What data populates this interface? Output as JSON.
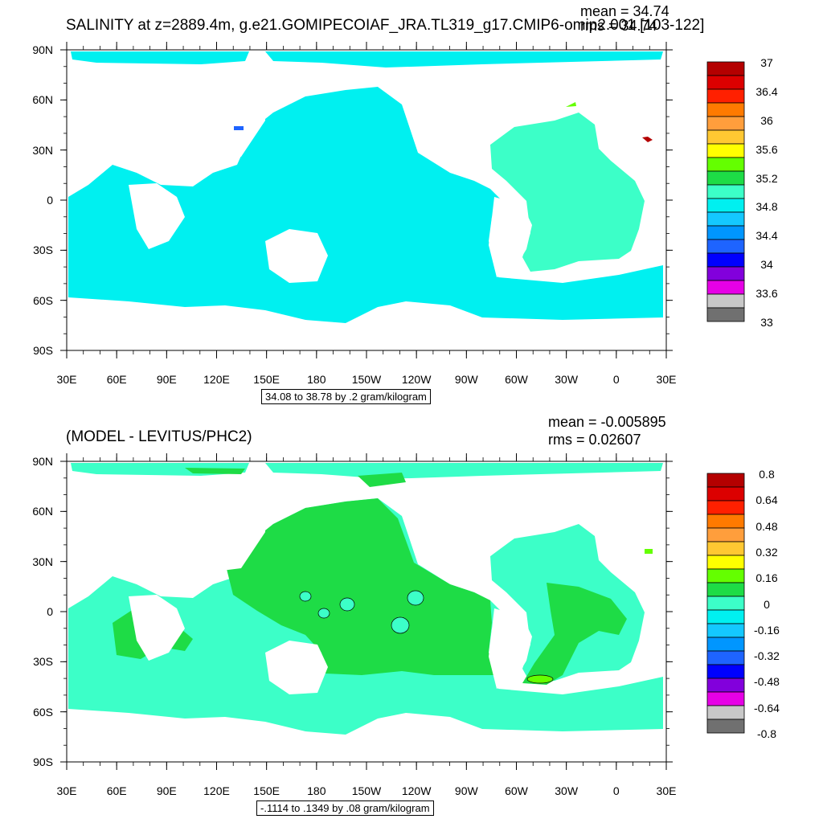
{
  "top": {
    "title": "SALINITY at z=2889.4m, g.e21.GOMIPECOIAF_JRA.TL319_g17.CMIP6-omip2.001 [103-122]",
    "mean": "mean = 34.74",
    "rms": "rms = 34.74",
    "footer": "34.08 to 38.78 by .2 gram/kilogram",
    "colorbar_labels": [
      "37",
      "36.4",
      "36",
      "35.6",
      "35.2",
      "34.8",
      "34.4",
      "34",
      "33.6",
      "33"
    ],
    "colorbar_colors": [
      "#b40000",
      "#dc0000",
      "#ff2000",
      "#ff7a00",
      "#ff9e3c",
      "#ffc832",
      "#ffff00",
      "#64ff00",
      "#1edc46",
      "#3cffc8",
      "#00f0f0",
      "#14c8ff",
      "#0096ff",
      "#1e64ff",
      "#0000ff",
      "#8200dc",
      "#e600e6",
      "#c8c8c8",
      "#707070"
    ]
  },
  "bottom": {
    "title": "(MODEL - LEVITUS/PHC2)",
    "mean": "mean = -0.005895",
    "rms": "rms = 0.02607",
    "footer": "-.1114 to .1349 by .08 gram/kilogram",
    "colorbar_labels": [
      "0.8",
      "0.64",
      "0.48",
      "0.32",
      "0.16",
      "0",
      "-0.16",
      "-0.32",
      "-0.48",
      "-0.64",
      "-0.8"
    ],
    "colorbar_colors": [
      "#b40000",
      "#dc0000",
      "#ff2000",
      "#ff7a00",
      "#ff9e3c",
      "#ffc832",
      "#ffff00",
      "#64ff00",
      "#1edc46",
      "#3cffc8",
      "#00f0f0",
      "#14c8ff",
      "#0096ff",
      "#1e64ff",
      "#0000ff",
      "#8200dc",
      "#e600e6",
      "#c8c8c8",
      "#707070"
    ]
  },
  "lat_labels": [
    "90N",
    "60N",
    "30N",
    "0",
    "30S",
    "60S",
    "90S"
  ],
  "lon_labels": [
    "30E",
    "60E",
    "90E",
    "120E",
    "150E",
    "180",
    "150W",
    "120W",
    "90W",
    "60W",
    "30W",
    "0",
    "30E"
  ],
  "colors": {
    "ocean_top": "#00f0f0",
    "atlantic_top": "#3cffc8",
    "diff_green": "#1edc46",
    "diff_teal": "#3cffc8"
  }
}
